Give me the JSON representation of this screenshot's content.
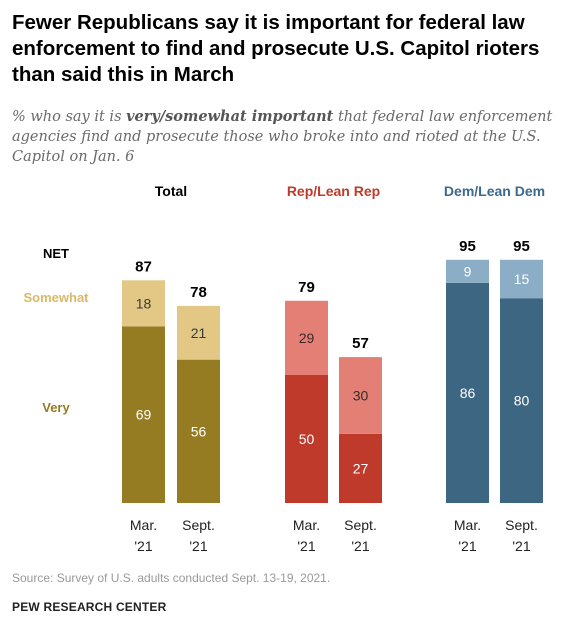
{
  "title": "Fewer Republicans say it is important for federal law enforcement to find and prosecute U.S. Capitol rioters than said this in March",
  "subtitle": {
    "before": "% who say it is ",
    "emphasis": "very/somewhat important",
    "after": " that federal law enforcement agencies find and prosecute those who broke into and rioted at the U.S. Capitol on Jan. 6"
  },
  "row_labels": {
    "net": "NET",
    "somewhat": "Somewhat",
    "very": "Very"
  },
  "chart_data": {
    "type": "bar",
    "stacked": true,
    "ylim": [
      0,
      100
    ],
    "groups": [
      {
        "name": "Total",
        "title_color": "#000000",
        "very_color": "#957c23",
        "somewhat_color": "#e2c884",
        "bars": [
          {
            "label_line1": "Mar.",
            "label_line2": "'21",
            "very": 69,
            "somewhat": 18,
            "net": 87
          },
          {
            "label_line1": "Sept.",
            "label_line2": "'21",
            "very": 56,
            "somewhat": 21,
            "net": 78
          }
        ]
      },
      {
        "name": "Rep/Lean Rep",
        "title_color": "#bf3a2b",
        "very_color": "#bf3a2b",
        "somewhat_color": "#e47f76",
        "bars": [
          {
            "label_line1": "Mar.",
            "label_line2": "'21",
            "very": 50,
            "somewhat": 29,
            "net": 79
          },
          {
            "label_line1": "Sept.",
            "label_line2": "'21",
            "very": 27,
            "somewhat": 30,
            "net": 57
          }
        ]
      },
      {
        "name": "Dem/Lean Dem",
        "title_color": "#3a6a8c",
        "very_color": "#3d6683",
        "somewhat_color": "#8badc6",
        "bars": [
          {
            "label_line1": "Mar.",
            "label_line2": "'21",
            "very": 86,
            "somewhat": 9,
            "net": 95
          },
          {
            "label_line1": "Sept.",
            "label_line2": "'21",
            "very": 80,
            "somewhat": 15,
            "net": 95
          }
        ]
      }
    ],
    "row_label_colors": {
      "net": "#000000",
      "somewhat": "#d9b86a",
      "very": "#957c23"
    }
  },
  "source": "Source: Survey of U.S. adults conducted Sept. 13-19, 2021.",
  "org": "PEW RESEARCH CENTER"
}
